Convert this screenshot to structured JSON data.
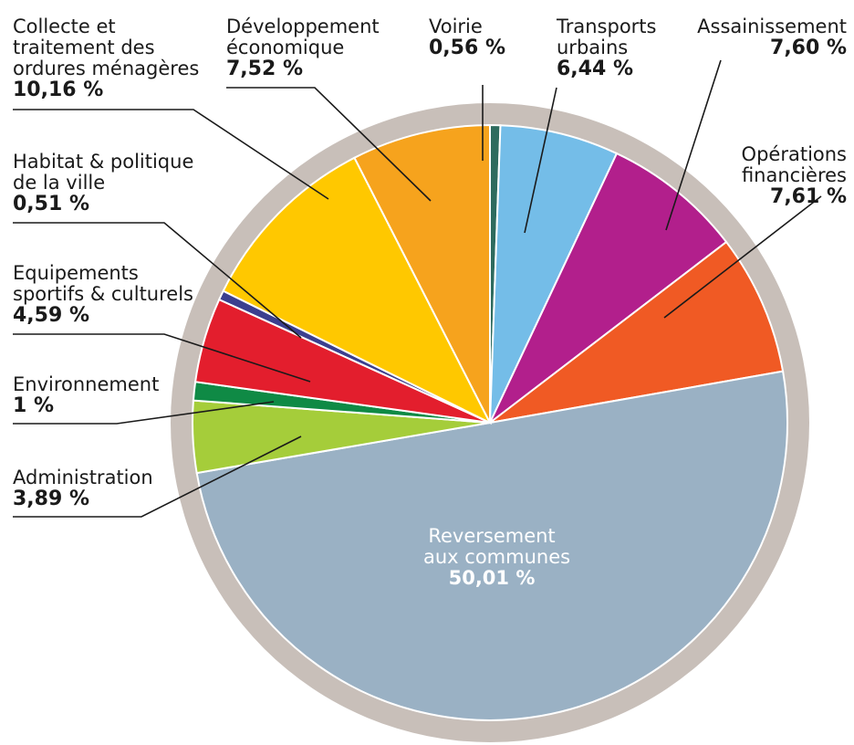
{
  "chart_data": {
    "type": "pie",
    "start_at": "12 o'clock",
    "direction": "clockwise",
    "ring_color": "#c8bfb9",
    "slices": [
      {
        "name": "Voirie",
        "value_label": "0,56 %",
        "value": 0.56,
        "color": "#2e6b5e"
      },
      {
        "name": "Transports urbains",
        "value_label": "6,44 %",
        "value": 6.44,
        "color": "#74bde8"
      },
      {
        "name": "Assainissement",
        "value_label": "7,60 %",
        "value": 7.6,
        "color": "#b21f8c"
      },
      {
        "name": "Opérations financières",
        "value_label": "7,61 %",
        "value": 7.61,
        "color": "#f05a24"
      },
      {
        "name": "Reversement aux communes",
        "value_label": "50,01 %",
        "value": 50.01,
        "color": "#9ab1c4"
      },
      {
        "name": "Administration",
        "value_label": "3,89 %",
        "value": 3.89,
        "color": "#a5cd3a"
      },
      {
        "name": "Environnement",
        "value_label": "1 %",
        "value": 1.0,
        "color": "#0f8a45"
      },
      {
        "name": "Equipements sportifs & culturels",
        "value_label": "4,59 %",
        "value": 4.59,
        "color": "#e31e2d"
      },
      {
        "name": "Habitat & politique de la ville",
        "value_label": "0,51 %",
        "value": 0.51,
        "color": "#3b3f8f"
      },
      {
        "name": "Collecte et traitement des ordures ménagères",
        "value_label": "10,16 %",
        "value": 10.16,
        "color": "#ffc800"
      },
      {
        "name": "Développement économique",
        "value_label": "7,52 %",
        "value": 7.52,
        "color": "#f6a31d"
      }
    ]
  },
  "labels": {
    "collecte": {
      "l1": "Collecte et",
      "l2": "traitement des",
      "l3": "ordures ménagères",
      "pct": "10,16 %"
    },
    "dev": {
      "l1": "Développement",
      "l2": "économique",
      "pct": "7,52 %"
    },
    "voirie": {
      "l1": "Voirie",
      "pct": "0,56 %"
    },
    "transports": {
      "l1": "Transports",
      "l2": "urbains",
      "pct": "6,44 %"
    },
    "assain": {
      "l1": "Assainissement",
      "pct": "7,60 %"
    },
    "operations": {
      "l1": "Opérations",
      "l2": "financières",
      "pct": "7,61 %"
    },
    "habitat": {
      "l1": "Habitat & politique",
      "l2": "de la ville",
      "pct": "0,51 %"
    },
    "equip": {
      "l1": "Equipements",
      "l2": "sportifs & culturels",
      "pct": "4,59 %"
    },
    "env": {
      "l1": "Environnement",
      "pct": "1 %"
    },
    "admin": {
      "l1": "Administration",
      "pct": "3,89 %"
    },
    "reversement": {
      "l1": "Reversement",
      "l2": "aux communes",
      "pct": "50,01 %"
    }
  }
}
